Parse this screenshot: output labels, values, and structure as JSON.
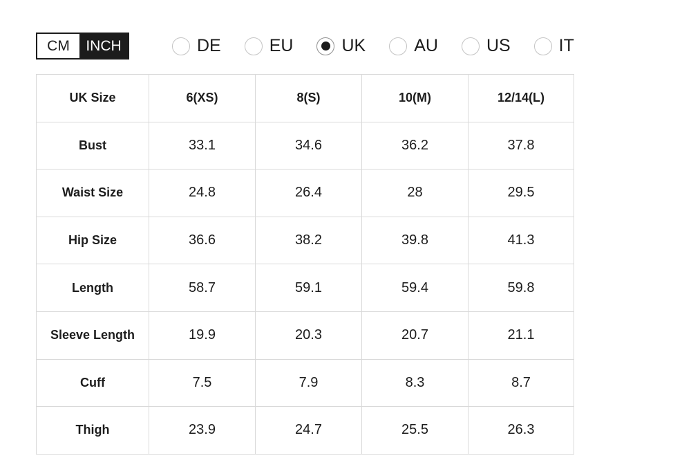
{
  "unit_toggle": {
    "options": [
      "CM",
      "INCH"
    ],
    "selected": "INCH"
  },
  "regions": {
    "options": [
      {
        "label": "DE",
        "selected": false
      },
      {
        "label": "EU",
        "selected": false
      },
      {
        "label": "UK",
        "selected": true
      },
      {
        "label": "AU",
        "selected": false
      },
      {
        "label": "US",
        "selected": false
      },
      {
        "label": "IT",
        "selected": false
      }
    ]
  },
  "size_table": {
    "headers": [
      "UK Size",
      "6(XS)",
      "8(S)",
      "10(M)",
      "12/14(L)"
    ],
    "rows": [
      {
        "label": "Bust",
        "values": [
          "33.1",
          "34.6",
          "36.2",
          "37.8"
        ]
      },
      {
        "label": "Waist Size",
        "values": [
          "24.8",
          "26.4",
          "28",
          "29.5"
        ]
      },
      {
        "label": "Hip Size",
        "values": [
          "36.6",
          "38.2",
          "39.8",
          "41.3"
        ]
      },
      {
        "label": "Length",
        "values": [
          "58.7",
          "59.1",
          "59.4",
          "59.8"
        ]
      },
      {
        "label": "Sleeve Length",
        "values": [
          "19.9",
          "20.3",
          "20.7",
          "21.1"
        ]
      },
      {
        "label": "Cuff",
        "values": [
          "7.5",
          "7.9",
          "8.3",
          "8.7"
        ]
      },
      {
        "label": "Thigh",
        "values": [
          "23.9",
          "24.7",
          "25.5",
          "26.3"
        ]
      }
    ]
  },
  "colors": {
    "accent_dark": "#1c1c1c",
    "text_dark": "#1d1d1d",
    "table_border": "#d9d9d9",
    "radio_border": "#c4c4c4"
  }
}
